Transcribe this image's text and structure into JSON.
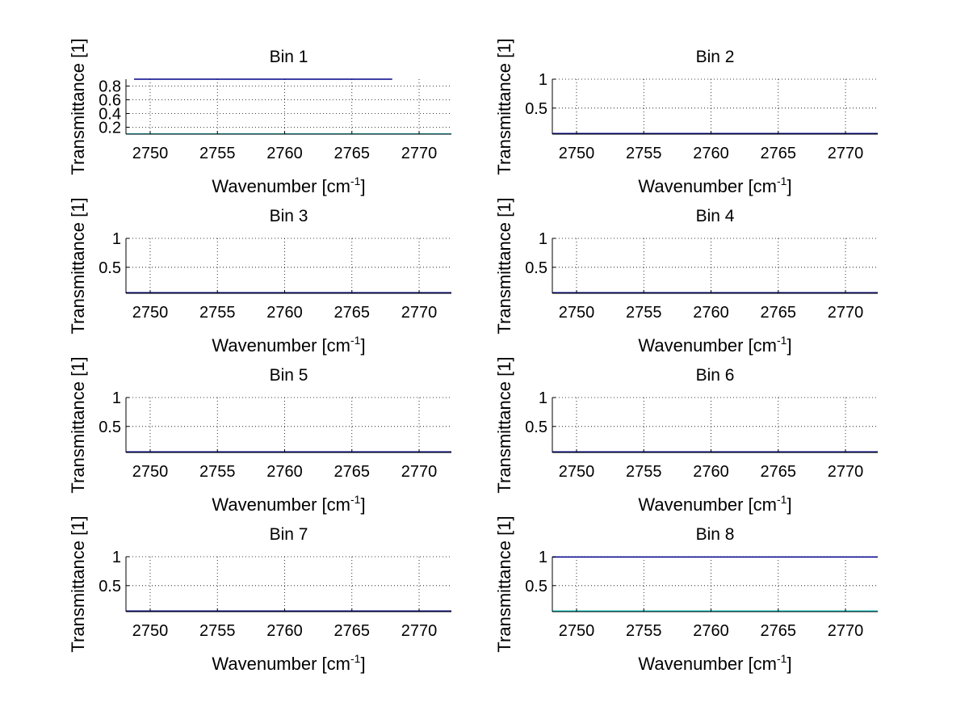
{
  "figure": {
    "background": "#ffffff",
    "colors": {
      "axes": "#000000",
      "grid": "#000000",
      "series_1": "#00008b",
      "series_2": "#00c8c8"
    }
  },
  "chart_data": [
    {
      "type": "line",
      "title": "Bin 1",
      "xlabel": "Wavenumber [cm",
      "xlabel_sup": "-1",
      "xlabel_end": "]",
      "ylabel": "Transmittance [1]",
      "xlim": [
        2748.2,
        2772.4
      ],
      "ylim": [
        0.1,
        0.9
      ],
      "xticks": [
        2750,
        2755,
        2760,
        2765,
        2770
      ],
      "yticks": [
        0.2,
        0.4,
        0.6,
        0.8
      ],
      "ytick_labels": [
        "0.2",
        "0.4",
        "0.6",
        "0.8"
      ],
      "grid": true,
      "series": [
        {
          "x": [
            2748.8,
            2768.0
          ],
          "values": [
            0.9,
            0.9
          ]
        },
        {
          "x": [
            2748.2,
            2772.4
          ],
          "values": [
            0.104,
            0.104
          ]
        }
      ]
    },
    {
      "type": "line",
      "title": "Bin 2",
      "xlabel": "Wavenumber [cm",
      "xlabel_sup": "-1",
      "xlabel_end": "]",
      "ylabel": "Transmittance [1]",
      "xlim": [
        2748.2,
        2772.4
      ],
      "ylim": [
        0.05,
        1.0
      ],
      "xticks": [
        2750,
        2755,
        2760,
        2765,
        2770
      ],
      "yticks": [
        0.5,
        1
      ],
      "ytick_labels": [
        "0.5",
        "1"
      ],
      "grid": true,
      "series": [
        {
          "x": [
            2748.2,
            2772.4
          ],
          "values": [
            0.06,
            0.06
          ]
        }
      ]
    },
    {
      "type": "line",
      "title": "Bin 3",
      "xlabel": "Wavenumber [cm",
      "xlabel_sup": "-1",
      "xlabel_end": "]",
      "ylabel": "Transmittance [1]",
      "xlim": [
        2748.2,
        2772.4
      ],
      "ylim": [
        0.05,
        1.0
      ],
      "xticks": [
        2750,
        2755,
        2760,
        2765,
        2770
      ],
      "yticks": [
        0.5,
        1
      ],
      "ytick_labels": [
        "0.5",
        "1"
      ],
      "grid": true,
      "series": [
        {
          "x": [
            2748.2,
            2772.4
          ],
          "values": [
            0.06,
            0.06
          ]
        }
      ]
    },
    {
      "type": "line",
      "title": "Bin 4",
      "xlabel": "Wavenumber [cm",
      "xlabel_sup": "-1",
      "xlabel_end": "]",
      "ylabel": "Transmittance [1]",
      "xlim": [
        2748.2,
        2772.4
      ],
      "ylim": [
        0.05,
        1.0
      ],
      "xticks": [
        2750,
        2755,
        2760,
        2765,
        2770
      ],
      "yticks": [
        0.5,
        1
      ],
      "ytick_labels": [
        "0.5",
        "1"
      ],
      "grid": true,
      "series": [
        {
          "x": [
            2748.2,
            2772.4
          ],
          "values": [
            0.06,
            0.06
          ]
        }
      ]
    },
    {
      "type": "line",
      "title": "Bin 5",
      "xlabel": "Wavenumber [cm",
      "xlabel_sup": "-1",
      "xlabel_end": "]",
      "ylabel": "Transmittance [1]",
      "xlim": [
        2748.2,
        2772.4
      ],
      "ylim": [
        0.05,
        1.0
      ],
      "xticks": [
        2750,
        2755,
        2760,
        2765,
        2770
      ],
      "yticks": [
        0.5,
        1
      ],
      "ytick_labels": [
        "0.5",
        "1"
      ],
      "grid": true,
      "series": [
        {
          "x": [
            2748.2,
            2772.4
          ],
          "values": [
            0.06,
            0.06
          ]
        }
      ]
    },
    {
      "type": "line",
      "title": "Bin 6",
      "xlabel": "Wavenumber [cm",
      "xlabel_sup": "-1",
      "xlabel_end": "]",
      "ylabel": "Transmittance [1]",
      "xlim": [
        2748.2,
        2772.4
      ],
      "ylim": [
        0.05,
        1.0
      ],
      "xticks": [
        2750,
        2755,
        2760,
        2765,
        2770
      ],
      "yticks": [
        0.5,
        1
      ],
      "ytick_labels": [
        "0.5",
        "1"
      ],
      "grid": true,
      "series": [
        {
          "x": [
            2748.2,
            2772.4
          ],
          "values": [
            0.06,
            0.06
          ]
        }
      ]
    },
    {
      "type": "line",
      "title": "Bin 7",
      "xlabel": "Wavenumber [cm",
      "xlabel_sup": "-1",
      "xlabel_end": "]",
      "ylabel": "Transmittance [1]",
      "xlim": [
        2748.2,
        2772.4
      ],
      "ylim": [
        0.05,
        1.0
      ],
      "xticks": [
        2750,
        2755,
        2760,
        2765,
        2770
      ],
      "yticks": [
        0.5,
        1
      ],
      "ytick_labels": [
        "0.5",
        "1"
      ],
      "grid": true,
      "series": [
        {
          "x": [
            2748.2,
            2772.4
          ],
          "values": [
            0.06,
            0.06
          ]
        }
      ]
    },
    {
      "type": "line",
      "title": "Bin 8",
      "xlabel": "Wavenumber [cm",
      "xlabel_sup": "-1",
      "xlabel_end": "]",
      "ylabel": "Transmittance [1]",
      "xlim": [
        2748.2,
        2772.4
      ],
      "ylim": [
        0.05,
        1.0
      ],
      "xticks": [
        2750,
        2755,
        2760,
        2765,
        2770
      ],
      "yticks": [
        0.5,
        1
      ],
      "ytick_labels": [
        "0.5",
        "1"
      ],
      "grid": true,
      "series": [
        {
          "x": [
            2748.2,
            2772.4
          ],
          "values": [
            0.995,
            0.995
          ]
        },
        {
          "x": [
            2748.2,
            2772.4
          ],
          "values": [
            0.06,
            0.06
          ]
        }
      ]
    }
  ]
}
